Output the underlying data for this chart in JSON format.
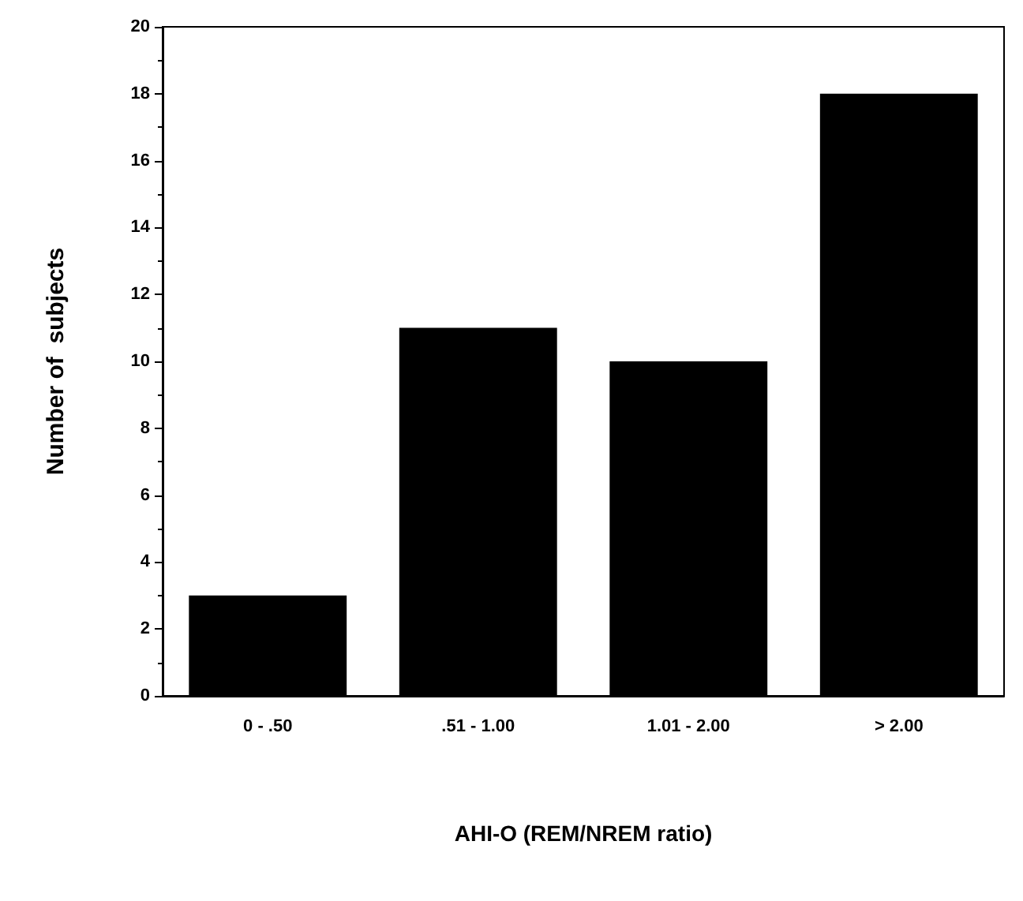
{
  "chart_data": {
    "type": "bar",
    "xlabel": "AHI-O (REM/NREM ratio)",
    "ylabel": "Number of  subjects",
    "categories": [
      "0 - .50",
      ".51 - 1.00",
      "1.01 - 2.00",
      "> 2.00"
    ],
    "values": [
      3,
      11,
      10,
      18
    ],
    "color": "#000000",
    "ylim": [
      0,
      20
    ],
    "yticks": [
      0,
      2,
      4,
      6,
      8,
      10,
      12,
      14,
      16,
      18,
      20
    ],
    "grid": false
  }
}
